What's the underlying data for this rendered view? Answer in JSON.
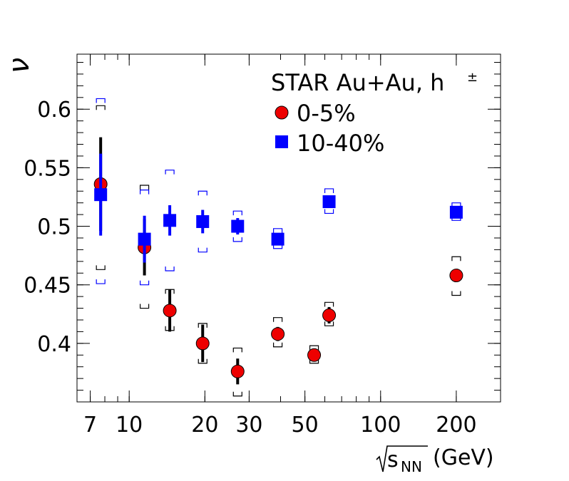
{
  "chart_data": {
    "type": "scatter",
    "ylabel": "ν",
    "xlabel_root": "s",
    "xlabel_sub": "NN",
    "xlabel_unit": "(GeV)",
    "xscale": "log",
    "xlim": [
      6.2,
      300
    ],
    "ylim": [
      0.35,
      0.647
    ],
    "xticks": [
      7,
      10,
      20,
      30,
      50,
      100,
      200
    ],
    "yticks": [
      0.4,
      0.45,
      0.5,
      0.55,
      0.6
    ],
    "ytick_labels": [
      "0.4",
      "0.45",
      "0.5",
      "0.55",
      "0.6"
    ],
    "grid": false,
    "legend_position": "top-right",
    "legend": {
      "title": "STAR Au+Au, h",
      "title_sup": "±",
      "entries": [
        "0-5%",
        "10-40%"
      ]
    },
    "series": [
      {
        "name": "0-5%",
        "marker": "circle",
        "color": "#ee0000",
        "errbar_color": "#000000",
        "x": [
          7.7,
          11.5,
          14.5,
          19.6,
          27,
          39,
          54.4,
          62.4,
          200
        ],
        "y": [
          0.536,
          0.482,
          0.428,
          0.4,
          0.376,
          0.408,
          0.39,
          0.424,
          0.458
        ],
        "stat_err": [
          0.04,
          0.024,
          0.018,
          0.016,
          0.011,
          0.006,
          0.004,
          0.007,
          0.004
        ],
        "sys_low": [
          0.463,
          0.43,
          0.411,
          0.383,
          0.355,
          0.397,
          0.383,
          0.415,
          0.441
        ],
        "sys_high": [
          0.603,
          0.535,
          0.446,
          0.417,
          0.396,
          0.422,
          0.398,
          0.435,
          0.474
        ]
      },
      {
        "name": "10-40%",
        "marker": "square",
        "color": "#0000ff",
        "errbar_color": "#0000ff",
        "x": [
          7.7,
          11.5,
          14.5,
          19.6,
          27,
          39,
          62.4,
          200
        ],
        "y": [
          0.527,
          0.489,
          0.505,
          0.504,
          0.5,
          0.489,
          0.521,
          0.512
        ],
        "stat_err": [
          0.035,
          0.02,
          0.013,
          0.01,
          0.007,
          0.004,
          0.004,
          0.003
        ],
        "sys_low": [
          0.451,
          0.45,
          0.462,
          0.478,
          0.487,
          0.481,
          0.511,
          0.505
        ],
        "sys_high": [
          0.609,
          0.531,
          0.548,
          0.53,
          0.513,
          0.498,
          0.532,
          0.52
        ]
      }
    ]
  }
}
